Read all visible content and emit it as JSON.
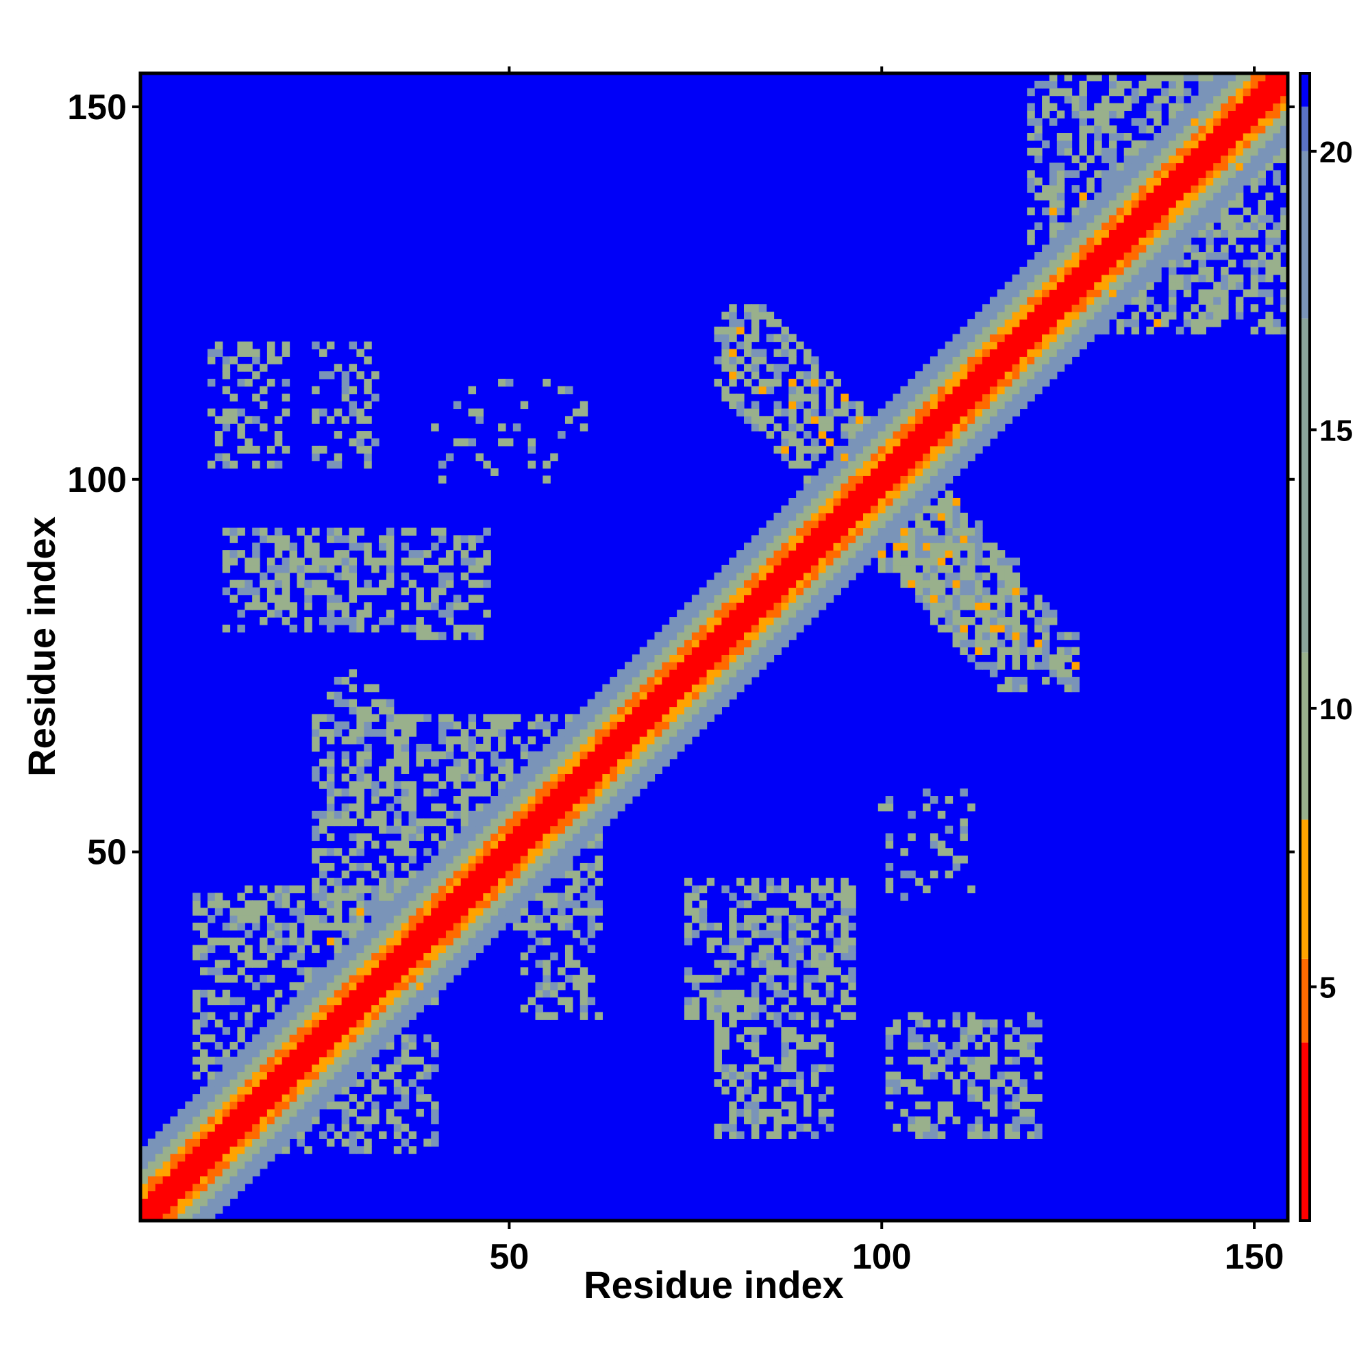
{
  "chart_data": {
    "type": "heatmap",
    "title": "",
    "xlabel": "Residue index",
    "ylabel": "Residue index",
    "xlim": [
      1,
      154
    ],
    "ylim": [
      1,
      154
    ],
    "x_ticks": [
      50,
      100,
      150
    ],
    "y_ticks": [
      50,
      100,
      150
    ],
    "colorbar": {
      "range": [
        0.8,
        21.4
      ],
      "ticks": [
        5,
        10,
        15,
        20
      ],
      "placement": "right"
    },
    "colors": {
      "background": "#0000f8",
      "close": "#ff0000",
      "near": "#ff6a00",
      "mid": "#ffa300",
      "far": "#99b08c",
      "farthest": "#7a94b8",
      "frame": "#000000"
    },
    "diagonal_band": {
      "red_width": 2,
      "orange_width": 4,
      "green_width": 9
    },
    "contact_regions": [
      {
        "name": "helix-antiparallel-A",
        "x": [
          78,
          118
        ],
        "y": [
          78,
          123
        ],
        "orient": "anti",
        "density": 0.6,
        "level": "mixed"
      },
      {
        "name": "helix-antiparallel-B",
        "x": [
          97,
          126
        ],
        "y": [
          72,
          98
        ],
        "orient": "anti",
        "density": 0.6,
        "level": "mixed"
      },
      {
        "name": "upper-right-cluster",
        "x": [
          120,
          154
        ],
        "y": [
          120,
          154
        ],
        "density": 0.5,
        "level": "far"
      },
      {
        "name": "lower-left-cluster",
        "x": [
          8,
          40
        ],
        "y": [
          10,
          45
        ],
        "density": 0.45,
        "level": "far"
      },
      {
        "name": "mid-left-cluster",
        "x": [
          24,
          62
        ],
        "y": [
          40,
          68
        ],
        "density": 0.5,
        "level": "far"
      },
      {
        "name": "block-a",
        "x": [
          10,
          20
        ],
        "y": [
          102,
          118
        ],
        "density": 0.4,
        "level": "far"
      },
      {
        "name": "block-b",
        "x": [
          24,
          32
        ],
        "y": [
          102,
          118
        ],
        "density": 0.35,
        "level": "far"
      },
      {
        "name": "block-c",
        "x": [
          12,
          34
        ],
        "y": [
          80,
          93
        ],
        "density": 0.5,
        "level": "far"
      },
      {
        "name": "block-d",
        "x": [
          36,
          47
        ],
        "y": [
          79,
          93
        ],
        "density": 0.45,
        "level": "far"
      },
      {
        "name": "block-e",
        "x": [
          25,
          34
        ],
        "y": [
          66,
          74
        ],
        "density": 0.3,
        "level": "far"
      },
      {
        "name": "block-f",
        "x": [
          52,
          62
        ],
        "y": [
          28,
          44
        ],
        "density": 0.35,
        "level": "far"
      },
      {
        "name": "block-g",
        "x": [
          74,
          96
        ],
        "y": [
          28,
          46
        ],
        "density": 0.5,
        "level": "far"
      },
      {
        "name": "block-h",
        "x": [
          78,
          93
        ],
        "y": [
          12,
          27
        ],
        "density": 0.45,
        "level": "far"
      },
      {
        "name": "block-i",
        "x": [
          101,
          121
        ],
        "y": [
          12,
          28
        ],
        "density": 0.45,
        "level": "far"
      },
      {
        "name": "block-j",
        "x": [
          100,
          112
        ],
        "y": [
          44,
          58
        ],
        "density": 0.2,
        "level": "far"
      },
      {
        "name": "block-k",
        "x": [
          40,
          60
        ],
        "y": [
          100,
          113
        ],
        "density": 0.12,
        "level": "far"
      }
    ],
    "hotspots": [
      [
        80,
        117
      ],
      [
        84,
        112
      ],
      [
        88,
        110
      ],
      [
        91,
        108
      ],
      [
        93,
        105
      ],
      [
        95,
        103
      ],
      [
        103,
        93
      ],
      [
        106,
        91
      ],
      [
        108,
        89
      ],
      [
        110,
        86
      ],
      [
        113,
        83
      ],
      [
        116,
        80
      ],
      [
        26,
        38
      ],
      [
        30,
        42
      ],
      [
        38,
        32
      ],
      [
        20,
        24
      ],
      [
        123,
        136
      ],
      [
        127,
        138
      ],
      [
        137,
        121
      ],
      [
        131,
        125
      ],
      [
        142,
        148
      ],
      [
        148,
        142
      ]
    ]
  }
}
